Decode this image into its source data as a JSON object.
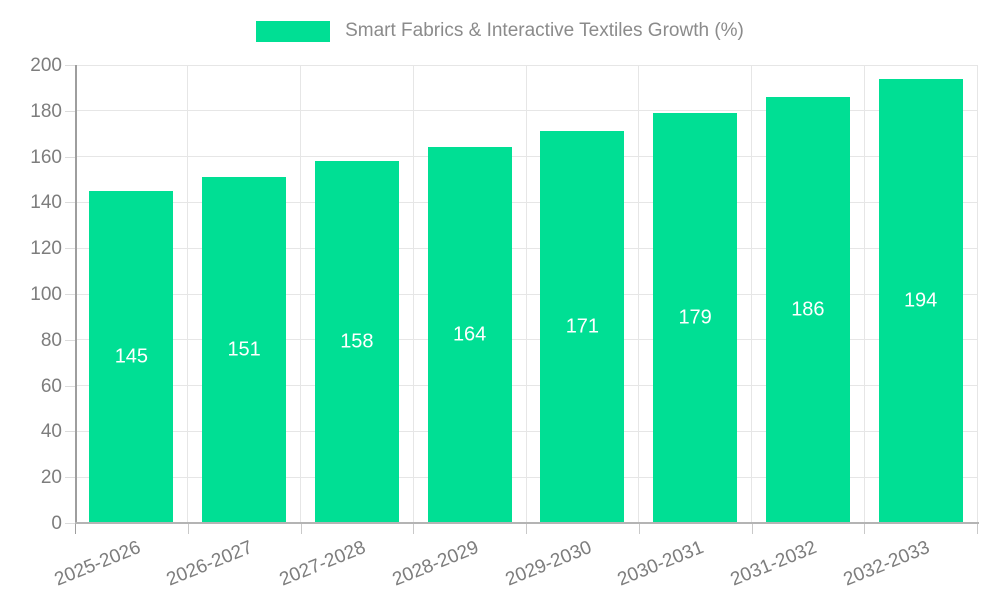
{
  "legend": {
    "label": "Smart Fabrics & Interactive Textiles Growth (%)"
  },
  "colors": {
    "bar": "#00DF94",
    "bar_label": "#ffffff",
    "legend_text": "#8b8b8b",
    "tick_text": "#7d7d7d",
    "gridline": "#e6e6e6",
    "y_axis_line": "#9e9e9e",
    "x_axis_line": "#b4b4b4"
  },
  "chart_data": {
    "type": "bar",
    "title": "Smart Fabrics & Interactive Textiles Growth (%)",
    "categories": [
      "2025-2026",
      "2026-2027",
      "2027-2028",
      "2028-2029",
      "2029-2030",
      "2030-2031",
      "2031-2032",
      "2032-2033"
    ],
    "series": [
      {
        "name": "Smart Fabrics & Interactive Textiles Growth (%)",
        "values": [
          145,
          151,
          158,
          164,
          171,
          179,
          186,
          194
        ]
      }
    ],
    "data_labels": [
      "145",
      "151",
      "158",
      "164",
      "171",
      "179",
      "186",
      "194"
    ],
    "xlabel": "",
    "ylabel": "",
    "ylim": [
      0,
      200
    ],
    "ytick_step": 20,
    "yticks": [
      "0",
      "20",
      "40",
      "60",
      "80",
      "100",
      "120",
      "140",
      "160",
      "180",
      "200"
    ],
    "grid": true,
    "legend_position": "top-center",
    "bar_color": "#00DF94",
    "value_label_position": "center-of-bar",
    "x_label_rotation_deg": -22
  }
}
